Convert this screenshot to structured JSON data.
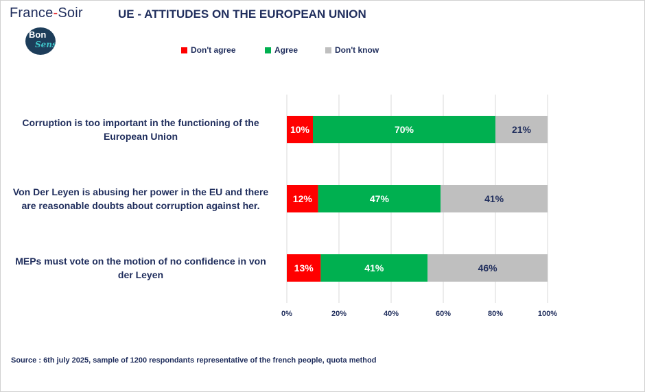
{
  "header": {
    "brand_left": "France",
    "brand_dash": "-",
    "brand_right": "Soir",
    "title": "UE - ATTITUDES ON THE EUROPEAN UNION",
    "logo_top": "Bon",
    "logo_bottom": "Sens"
  },
  "footer": {
    "source": "Source : 6th july 2025, sample of 1200 respondants representative of the french people, quota method"
  },
  "chart_data": {
    "type": "bar",
    "orientation": "horizontal",
    "stacked": true,
    "categories": [
      "Corruption is too important in the functioning of the European Union",
      "Von Der Leyen is abusing her power in the EU and there are reasonable doubts about corruption against her.",
      "MEPs must vote on the motion of no confidence in von der Leyen"
    ],
    "category_lines": [
      [
        "Corruption is too important in the functioning of the",
        "European Union"
      ],
      [
        "Von Der Leyen is abusing her power in the EU and there",
        "are reasonable doubts about corruption against her."
      ],
      [
        "MEPs must vote on the motion of no confidence in von",
        "der Leyen"
      ]
    ],
    "series": [
      {
        "name": "Don't agree",
        "color": "#ff0000",
        "label_color": "#ffffff",
        "values": [
          10,
          12,
          13
        ]
      },
      {
        "name": "Agree",
        "color": "#00b050",
        "label_color": "#ffffff",
        "values": [
          70,
          47,
          41
        ]
      },
      {
        "name": "Don't know",
        "color": "#bfbfbf",
        "label_color": "#1f2d5c",
        "values": [
          21,
          41,
          46
        ]
      }
    ],
    "xlim": [
      0,
      100
    ],
    "xticks": [
      "0%",
      "20%",
      "40%",
      "60%",
      "80%",
      "100%"
    ],
    "xtick_values": [
      0,
      20,
      40,
      60,
      80,
      100
    ],
    "grid": true,
    "legend_position": "top"
  }
}
